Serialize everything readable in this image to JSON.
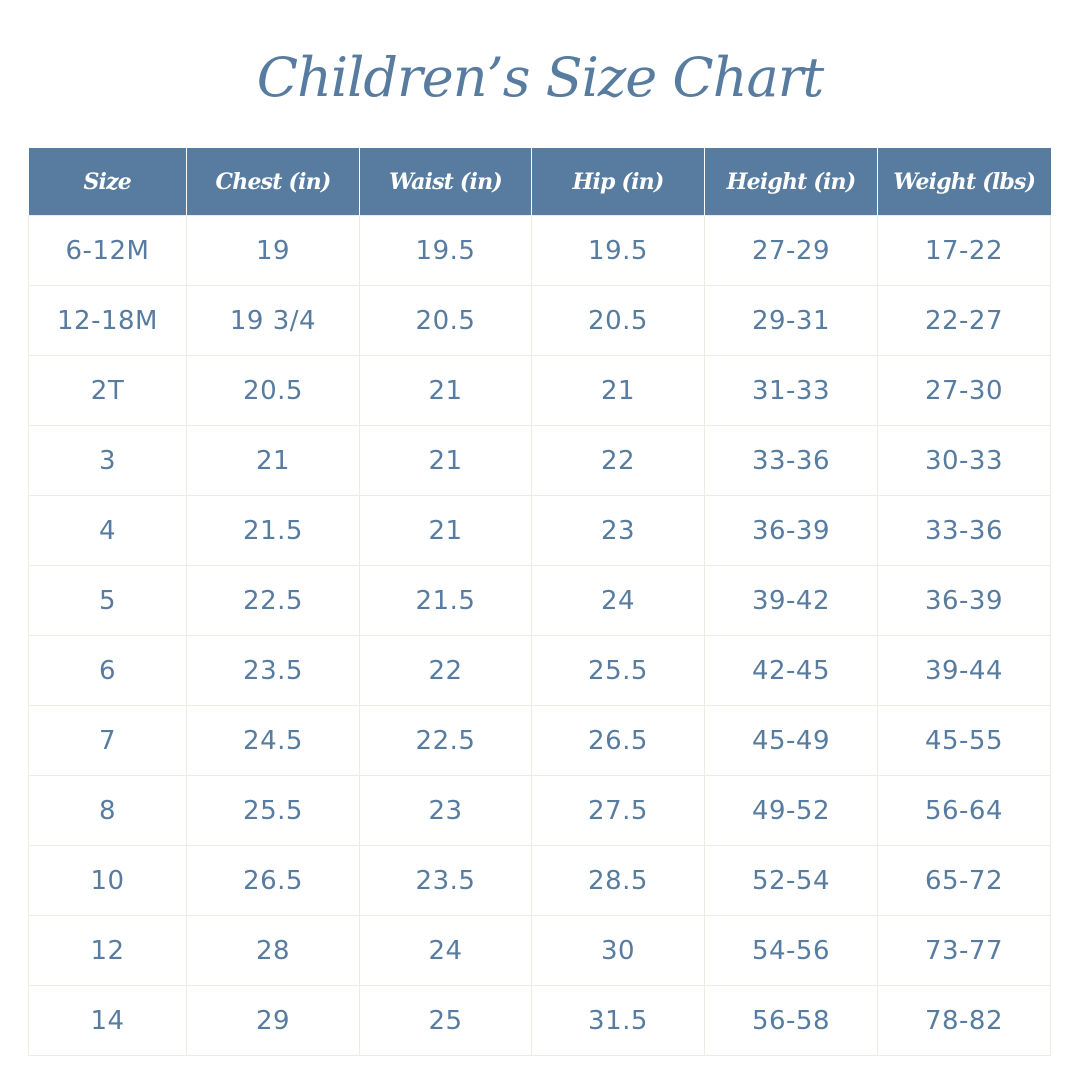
{
  "title": "Children’s Size Chart",
  "colors": {
    "accent": "#577ca0",
    "header_text": "#ffffff",
    "grid_line": "#eeebe4",
    "background": "#ffffff"
  },
  "table": {
    "headers": [
      "Size",
      "Chest (in)",
      "Waist (in)",
      "Hip (in)",
      "Height (in)",
      "Weight (lbs)"
    ],
    "rows": [
      [
        "6-12M",
        "19",
        "19.5",
        "19.5",
        "27-29",
        "17-22"
      ],
      [
        "12-18M",
        "19 3/4",
        "20.5",
        "20.5",
        "29-31",
        "22-27"
      ],
      [
        "2T",
        "20.5",
        "21",
        "21",
        "31-33",
        "27-30"
      ],
      [
        "3",
        "21",
        "21",
        "22",
        "33-36",
        "30-33"
      ],
      [
        "4",
        "21.5",
        "21",
        "23",
        "36-39",
        "33-36"
      ],
      [
        "5",
        "22.5",
        "21.5",
        "24",
        "39-42",
        "36-39"
      ],
      [
        "6",
        "23.5",
        "22",
        "25.5",
        "42-45",
        "39-44"
      ],
      [
        "7",
        "24.5",
        "22.5",
        "26.5",
        "45-49",
        "45-55"
      ],
      [
        "8",
        "25.5",
        "23",
        "27.5",
        "49-52",
        "56-64"
      ],
      [
        "10",
        "26.5",
        "23.5",
        "28.5",
        "52-54",
        "65-72"
      ],
      [
        "12",
        "28",
        "24",
        "30",
        "54-56",
        "73-77"
      ],
      [
        "14",
        "29",
        "25",
        "31.5",
        "56-58",
        "78-82"
      ]
    ]
  }
}
